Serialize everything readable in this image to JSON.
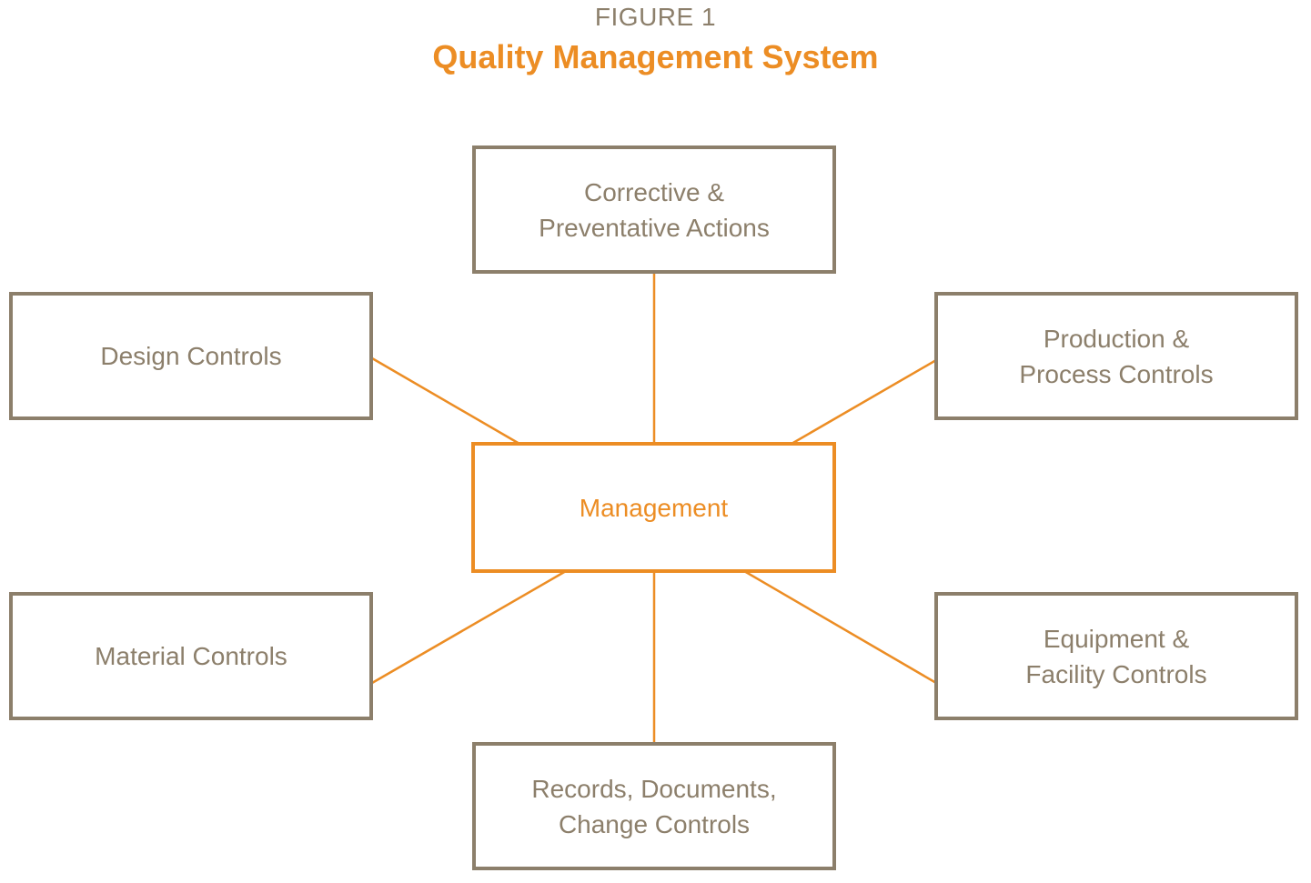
{
  "header": {
    "figure_label": "FIGURE 1",
    "title": "Quality Management System"
  },
  "colors": {
    "accent": "#ec8d24",
    "box_border": "#8c7f6b",
    "box_text": "#8c7f6b",
    "label_text": "#8c7f6b"
  },
  "diagram": {
    "center": {
      "id": "management",
      "label": "Management"
    },
    "nodes": [
      {
        "id": "corrective",
        "label": "Corrective &\nPreventative Actions"
      },
      {
        "id": "design",
        "label": "Design Controls"
      },
      {
        "id": "production",
        "label": "Production &\nProcess Controls"
      },
      {
        "id": "material",
        "label": "Material Controls"
      },
      {
        "id": "equipment",
        "label": "Equipment &\nFacility Controls"
      },
      {
        "id": "records",
        "label": "Records, Documents,\nChange Controls"
      }
    ],
    "edges": [
      {
        "from": "management",
        "to": "corrective"
      },
      {
        "from": "management",
        "to": "design"
      },
      {
        "from": "management",
        "to": "production"
      },
      {
        "from": "management",
        "to": "material"
      },
      {
        "from": "management",
        "to": "equipment"
      },
      {
        "from": "management",
        "to": "records"
      }
    ]
  }
}
